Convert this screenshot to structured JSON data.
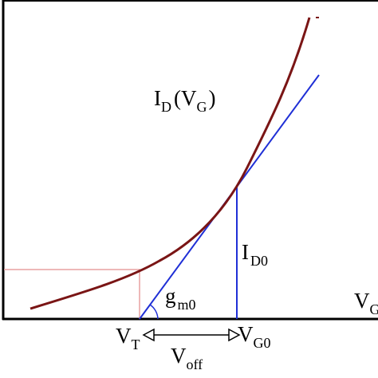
{
  "labels": {
    "id_vg": {
      "i": "I",
      "d": "D",
      "open": "(V",
      "g": "G",
      "close": ")"
    },
    "id0": {
      "base": "I",
      "sub": "D0"
    },
    "gm0": {
      "base": "g",
      "sub": "m0"
    },
    "vg_axis": {
      "base": "V",
      "sub": "G"
    },
    "vt": {
      "base": "V",
      "sub": "T"
    },
    "vg0": {
      "base": "V",
      "sub": "G0"
    },
    "voff": {
      "base": "V",
      "sub": "off"
    }
  }
}
